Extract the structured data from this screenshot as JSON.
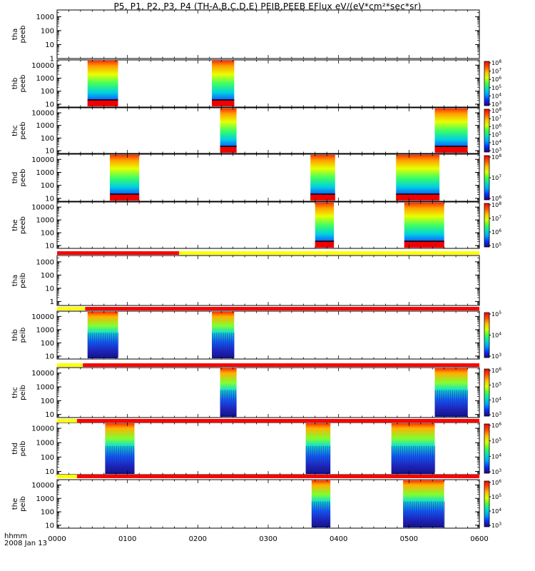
{
  "title": "P5, P1, P2, P3, P4 (TH-A,B,C,D,E) PEIB,PEEB EFlux eV/(eV*cm²*sec*sr)",
  "footer": {
    "time_label": "hhmm",
    "date_label": "2008 Jan 13"
  },
  "colors": {
    "spectrogram": [
      "#2a0080",
      "#0030ff",
      "#00a0ff",
      "#00e0c0",
      "#40ff40",
      "#d8ff00",
      "#ffc000",
      "#ff5000",
      "#ff0000"
    ],
    "flag_red": "#ff0000",
    "flag_yellow": "#ffff00",
    "black": "#000000"
  },
  "chart_data": {
    "type": "heatmap",
    "x_ticks": [
      "0000",
      "0100",
      "0200",
      "0300",
      "0400",
      "0500",
      "0600"
    ],
    "x_range_minutes": [
      0,
      360
    ],
    "panels": [
      {
        "label": [
          "tha",
          "peeb"
        ],
        "y_ticks": [
          "1",
          "10",
          "100",
          "1000"
        ],
        "y_range": [
          1,
          3000
        ],
        "blocks": [],
        "colorbar": null
      },
      {
        "label": [
          "thb",
          "peeb"
        ],
        "y_ticks": [
          "10",
          "100",
          "1000",
          "10000"
        ],
        "y_range": [
          6,
          25000
        ],
        "blocks": [
          [
            26,
            52,
            "full"
          ],
          [
            132,
            151,
            "full"
          ]
        ],
        "colorbar": [
          "10^3",
          "10^4",
          "10^5",
          "10^6",
          "10^7",
          "10^8"
        ]
      },
      {
        "label": [
          "thc",
          "peeb"
        ],
        "y_ticks": [
          "10",
          "100",
          "1000",
          "10000"
        ],
        "y_range": [
          6,
          25000
        ],
        "blocks": [
          [
            139,
            153,
            "full"
          ],
          [
            322,
            350,
            "full"
          ]
        ],
        "colorbar": [
          "10^3",
          "10^4",
          "10^5",
          "10^6",
          "10^7",
          "10^8"
        ]
      },
      {
        "label": [
          "thd",
          "peeb"
        ],
        "y_ticks": [
          "10",
          "100",
          "1000",
          "10000"
        ],
        "y_range": [
          6,
          25000
        ],
        "blocks": [
          [
            45,
            70,
            "full"
          ],
          [
            216,
            237,
            "full"
          ],
          [
            289,
            326,
            "full"
          ]
        ],
        "colorbar": [
          "10^6",
          "10^7",
          "10^8"
        ]
      },
      {
        "label": [
          "the",
          "peeb"
        ],
        "y_ticks": [
          "10",
          "100",
          "1000",
          "10000"
        ],
        "y_range": [
          6,
          25000
        ],
        "blocks": [
          [
            220,
            236,
            "full"
          ],
          [
            296,
            330,
            "full"
          ]
        ],
        "colorbar": [
          "10^5",
          "10^6",
          "10^7",
          "10^8"
        ]
      },
      {
        "label": [
          "tha",
          "peib"
        ],
        "y_ticks": [
          "1",
          "10",
          "100",
          "1000"
        ],
        "y_range": [
          0.5,
          3000
        ],
        "blocks": [],
        "colorbar": null,
        "flag": [
          [
            0,
            104,
            "red"
          ],
          [
            104,
            360,
            "yellow"
          ]
        ]
      },
      {
        "label": [
          "thb",
          "peib"
        ],
        "y_ticks": [
          "10",
          "100",
          "1000",
          "10000"
        ],
        "y_range": [
          6,
          25000
        ],
        "blocks": [
          [
            26,
            52,
            "ion"
          ],
          [
            132,
            151,
            "ion"
          ]
        ],
        "colorbar": [
          "10^3",
          "10^4",
          "10^5"
        ],
        "flag": [
          [
            0,
            24,
            "yellow"
          ],
          [
            24,
            360,
            "red"
          ]
        ]
      },
      {
        "label": [
          "thc",
          "peib"
        ],
        "y_ticks": [
          "10",
          "100",
          "1000",
          "10000"
        ],
        "y_range": [
          6,
          25000
        ],
        "blocks": [
          [
            139,
            153,
            "ion"
          ],
          [
            322,
            350,
            "ion"
          ]
        ],
        "colorbar": [
          "10^3",
          "10^4",
          "10^5",
          "10^6"
        ],
        "flag": [
          [
            0,
            22,
            "yellow"
          ],
          [
            22,
            360,
            "red"
          ]
        ]
      },
      {
        "label": [
          "thd",
          "peib"
        ],
        "y_ticks": [
          "10",
          "100",
          "1000",
          "10000"
        ],
        "y_range": [
          6,
          25000
        ],
        "blocks": [
          [
            41,
            66,
            "ion"
          ],
          [
            212,
            233,
            "ion"
          ],
          [
            285,
            322,
            "ion"
          ]
        ],
        "colorbar": [
          "10^3",
          "10^4",
          "10^5",
          "10^6"
        ],
        "flag": [
          [
            0,
            17,
            "yellow"
          ],
          [
            17,
            360,
            "red"
          ]
        ]
      },
      {
        "label": [
          "the",
          "peib"
        ],
        "y_ticks": [
          "10",
          "100",
          "1000",
          "10000"
        ],
        "y_range": [
          6,
          25000
        ],
        "blocks": [
          [
            217,
            233,
            "ion"
          ],
          [
            295,
            330,
            "ion"
          ]
        ],
        "colorbar": [
          "10^3",
          "10^4",
          "10^5",
          "10^6"
        ],
        "flag": [
          [
            0,
            17,
            "yellow"
          ],
          [
            17,
            360,
            "red"
          ]
        ]
      }
    ]
  }
}
